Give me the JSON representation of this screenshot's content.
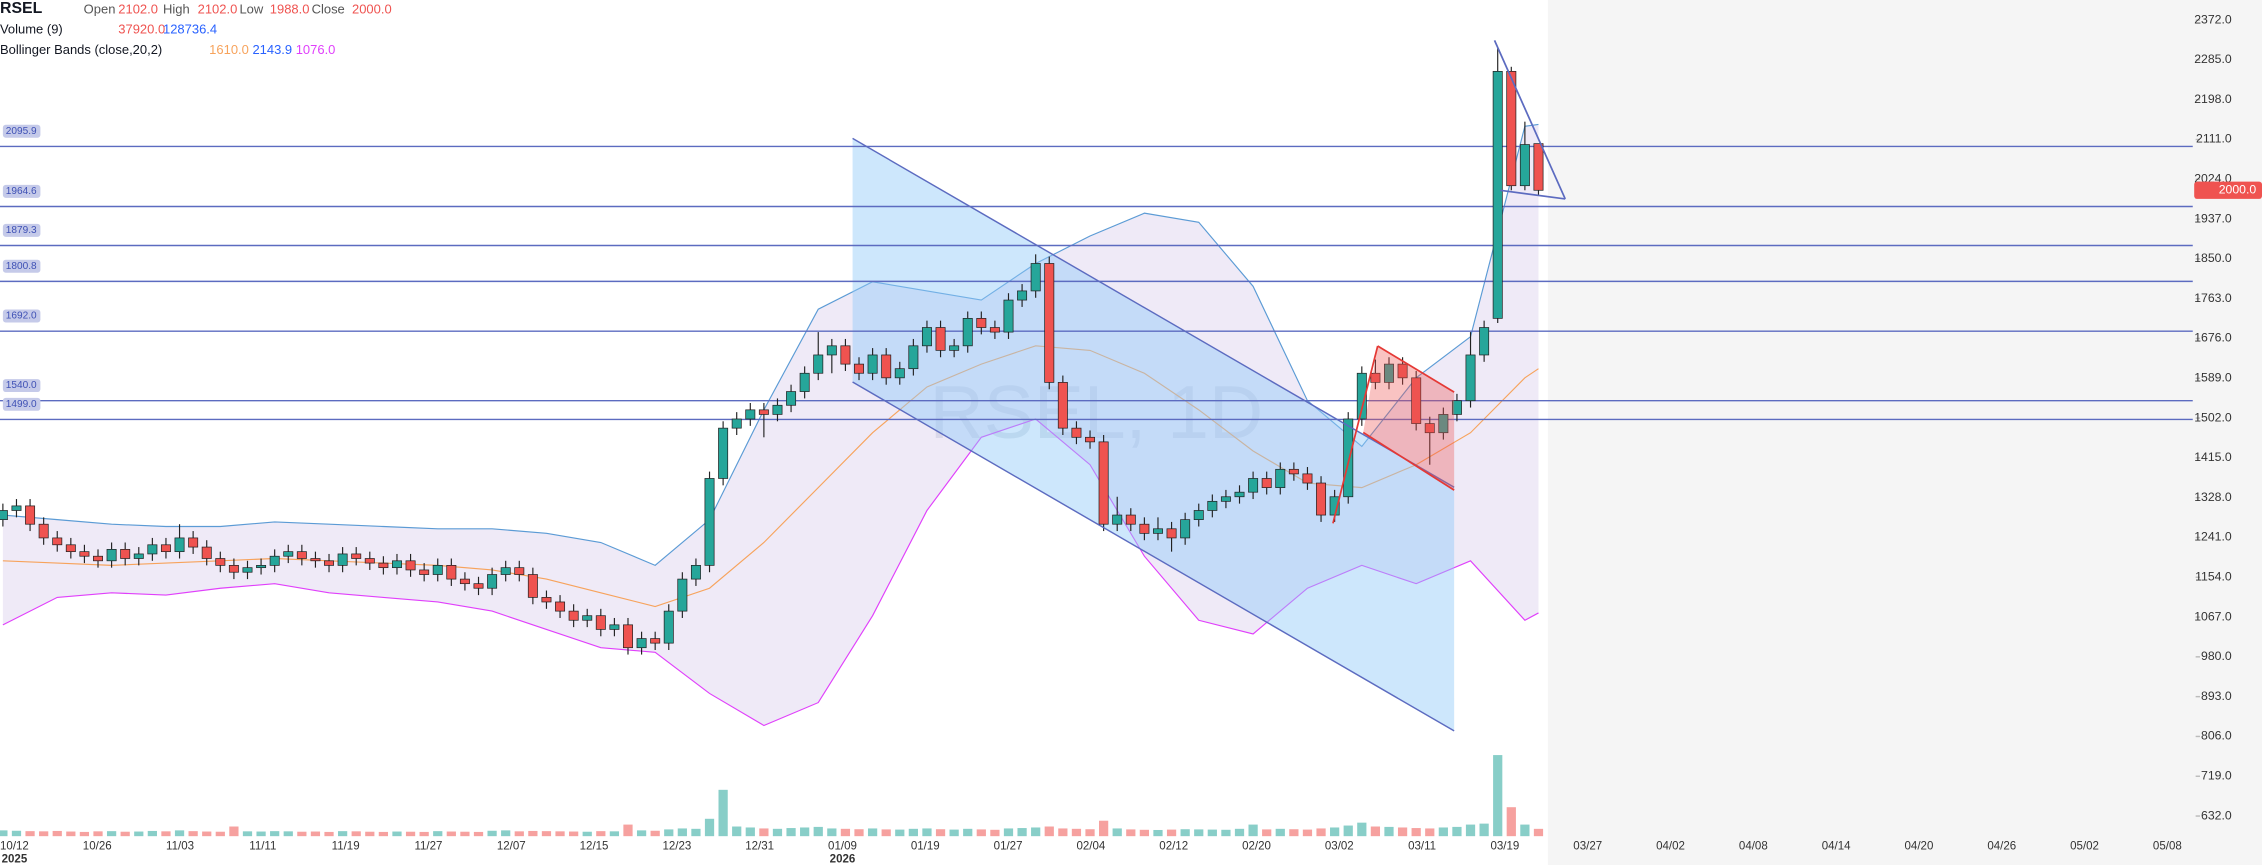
{
  "header": {
    "symbol": "RSEL",
    "open_label": "Open",
    "open": "2102.0",
    "high_label": "High",
    "high": "2102.0",
    "low_label": "Low",
    "low": "1988.0",
    "close_label": "Close",
    "close": "2000.0",
    "volume_label": "Volume (9)",
    "volume": "37920.0",
    "volume_ma": "128736.4",
    "bb_label": "Bollinger Bands (close,20,2)",
    "bb_basis": "1610.0",
    "bb_upper": "2143.9",
    "bb_lower": "1076.0"
  },
  "chart_data": {
    "type": "candlestick",
    "watermark": "RSEL, 1D",
    "up_color": "#26a69a",
    "down_color": "#ef5350",
    "ylim": [
      588,
      2416
    ],
    "yticks": [
      {
        "value": 2372,
        "label": "2372.0"
      },
      {
        "value": 2285,
        "label": "2285.0"
      },
      {
        "value": 2198,
        "label": "2198.0"
      },
      {
        "value": 2111,
        "label": "2111.0"
      },
      {
        "value": 2024,
        "label": "2024.0"
      },
      {
        "value": 1937,
        "label": "1937.0"
      },
      {
        "value": 1850,
        "label": "1850.0"
      },
      {
        "value": 1763,
        "label": "1763.0"
      },
      {
        "value": 1676,
        "label": "1676.0"
      },
      {
        "value": 1589,
        "label": "1589.0"
      },
      {
        "value": 1502,
        "label": "1502.0"
      },
      {
        "value": 1415,
        "label": "1415.0"
      },
      {
        "value": 1328,
        "label": "1328.0"
      },
      {
        "value": 1241,
        "label": "1241.0"
      },
      {
        "value": 1154,
        "label": "1154.0"
      },
      {
        "value": 1067,
        "label": "1067.0"
      },
      {
        "value": 980,
        "label": "980.0"
      },
      {
        "value": 893,
        "label": "893.0"
      },
      {
        "value": 806,
        "label": "806.0"
      },
      {
        "value": 719,
        "label": "719.0"
      },
      {
        "value": 632,
        "label": "632.0"
      }
    ],
    "levels": [
      {
        "value": 2095.9,
        "label": "2095.9"
      },
      {
        "value": 1964.6,
        "label": "1964.6"
      },
      {
        "value": 1879.3,
        "label": "1879.3"
      },
      {
        "value": 1800.8,
        "label": "1800.8"
      },
      {
        "value": 1692,
        "label": "1692.0"
      },
      {
        "value": 1540,
        "label": "1540.0"
      },
      {
        "value": 1499,
        "label": "1499.0"
      }
    ],
    "last_price": {
      "value": 2000,
      "label": "2000.0"
    },
    "time_axis": [
      {
        "label": "10/12",
        "year": "2025"
      },
      {
        "label": "10/26"
      },
      {
        "label": "11/03"
      },
      {
        "label": "11/11"
      },
      {
        "label": "11/19"
      },
      {
        "label": "11/27"
      },
      {
        "label": "12/07"
      },
      {
        "label": "12/15"
      },
      {
        "label": "12/23"
      },
      {
        "label": "12/31"
      },
      {
        "label": "01/09",
        "year": "2026"
      },
      {
        "label": "01/19"
      },
      {
        "label": "01/27"
      },
      {
        "label": "02/04"
      },
      {
        "label": "02/12"
      },
      {
        "label": "02/20"
      },
      {
        "label": "03/02"
      },
      {
        "label": "03/11"
      },
      {
        "label": "03/19"
      },
      {
        "label": "03/27"
      },
      {
        "label": "04/02"
      },
      {
        "label": "04/08"
      },
      {
        "label": "04/14"
      },
      {
        "label": "04/20"
      },
      {
        "label": "04/26"
      },
      {
        "label": "05/02"
      },
      {
        "label": "05/08"
      }
    ],
    "candles": [
      [
        1280,
        1315,
        1265,
        1300
      ],
      [
        1300,
        1325,
        1285,
        1310
      ],
      [
        1310,
        1325,
        1255,
        1270
      ],
      [
        1270,
        1285,
        1225,
        1240
      ],
      [
        1240,
        1255,
        1210,
        1225
      ],
      [
        1225,
        1240,
        1195,
        1210
      ],
      [
        1210,
        1225,
        1185,
        1200
      ],
      [
        1200,
        1215,
        1175,
        1190
      ],
      [
        1190,
        1230,
        1175,
        1215
      ],
      [
        1215,
        1230,
        1180,
        1195
      ],
      [
        1195,
        1220,
        1180,
        1205
      ],
      [
        1205,
        1240,
        1190,
        1225
      ],
      [
        1225,
        1240,
        1195,
        1210
      ],
      [
        1210,
        1270,
        1195,
        1240
      ],
      [
        1240,
        1255,
        1205,
        1220
      ],
      [
        1220,
        1235,
        1180,
        1195
      ],
      [
        1195,
        1210,
        1165,
        1180
      ],
      [
        1180,
        1195,
        1150,
        1165
      ],
      [
        1165,
        1190,
        1150,
        1175
      ],
      [
        1175,
        1195,
        1160,
        1180
      ],
      [
        1180,
        1215,
        1165,
        1200
      ],
      [
        1200,
        1225,
        1185,
        1210
      ],
      [
        1210,
        1225,
        1180,
        1195
      ],
      [
        1195,
        1210,
        1175,
        1190
      ],
      [
        1190,
        1205,
        1165,
        1180
      ],
      [
        1180,
        1220,
        1165,
        1205
      ],
      [
        1205,
        1220,
        1180,
        1195
      ],
      [
        1195,
        1210,
        1170,
        1185
      ],
      [
        1185,
        1200,
        1160,
        1175
      ],
      [
        1175,
        1205,
        1160,
        1190
      ],
      [
        1190,
        1205,
        1155,
        1170
      ],
      [
        1170,
        1185,
        1145,
        1160
      ],
      [
        1160,
        1195,
        1145,
        1180
      ],
      [
        1180,
        1195,
        1135,
        1150
      ],
      [
        1150,
        1165,
        1125,
        1140
      ],
      [
        1140,
        1155,
        1115,
        1130
      ],
      [
        1130,
        1175,
        1115,
        1160
      ],
      [
        1160,
        1190,
        1145,
        1175
      ],
      [
        1175,
        1190,
        1145,
        1160
      ],
      [
        1160,
        1175,
        1095,
        1110
      ],
      [
        1110,
        1125,
        1085,
        1100
      ],
      [
        1100,
        1115,
        1065,
        1080
      ],
      [
        1080,
        1095,
        1045,
        1060
      ],
      [
        1060,
        1085,
        1045,
        1070
      ],
      [
        1070,
        1085,
        1025,
        1040
      ],
      [
        1040,
        1065,
        1025,
        1050
      ],
      [
        1050,
        1065,
        985,
        1000
      ],
      [
        1000,
        1035,
        985,
        1020
      ],
      [
        1020,
        1035,
        995,
        1010
      ],
      [
        1010,
        1095,
        995,
        1080
      ],
      [
        1080,
        1165,
        1065,
        1150
      ],
      [
        1150,
        1195,
        1135,
        1180
      ],
      [
        1180,
        1385,
        1165,
        1370
      ],
      [
        1370,
        1495,
        1355,
        1480
      ],
      [
        1480,
        1515,
        1465,
        1500
      ],
      [
        1500,
        1535,
        1485,
        1520
      ],
      [
        1520,
        1535,
        1460,
        1510
      ],
      [
        1510,
        1545,
        1495,
        1530
      ],
      [
        1530,
        1575,
        1515,
        1560
      ],
      [
        1560,
        1615,
        1545,
        1600
      ],
      [
        1600,
        1690,
        1585,
        1640
      ],
      [
        1640,
        1675,
        1600,
        1660
      ],
      [
        1660,
        1675,
        1605,
        1620
      ],
      [
        1620,
        1635,
        1585,
        1600
      ],
      [
        1600,
        1655,
        1585,
        1640
      ],
      [
        1640,
        1655,
        1575,
        1590
      ],
      [
        1590,
        1625,
        1575,
        1610
      ],
      [
        1610,
        1675,
        1595,
        1660
      ],
      [
        1660,
        1715,
        1645,
        1700
      ],
      [
        1700,
        1715,
        1635,
        1650
      ],
      [
        1650,
        1675,
        1635,
        1660
      ],
      [
        1660,
        1735,
        1645,
        1720
      ],
      [
        1720,
        1735,
        1685,
        1700
      ],
      [
        1700,
        1715,
        1675,
        1690
      ],
      [
        1690,
        1775,
        1675,
        1760
      ],
      [
        1760,
        1795,
        1745,
        1780
      ],
      [
        1780,
        1860,
        1765,
        1840
      ],
      [
        1840,
        1855,
        1565,
        1580
      ],
      [
        1580,
        1595,
        1465,
        1480
      ],
      [
        1480,
        1495,
        1445,
        1460
      ],
      [
        1460,
        1475,
        1435,
        1450
      ],
      [
        1450,
        1465,
        1255,
        1270
      ],
      [
        1270,
        1330,
        1255,
        1290
      ],
      [
        1290,
        1305,
        1255,
        1270
      ],
      [
        1270,
        1285,
        1235,
        1250
      ],
      [
        1250,
        1285,
        1235,
        1260
      ],
      [
        1260,
        1275,
        1210,
        1240
      ],
      [
        1240,
        1295,
        1225,
        1280
      ],
      [
        1280,
        1315,
        1265,
        1300
      ],
      [
        1300,
        1335,
        1285,
        1320
      ],
      [
        1320,
        1345,
        1305,
        1330
      ],
      [
        1330,
        1355,
        1315,
        1340
      ],
      [
        1340,
        1385,
        1325,
        1370
      ],
      [
        1370,
        1385,
        1335,
        1350
      ],
      [
        1350,
        1405,
        1335,
        1390
      ],
      [
        1390,
        1405,
        1365,
        1380
      ],
      [
        1380,
        1395,
        1345,
        1360
      ],
      [
        1360,
        1375,
        1275,
        1290
      ],
      [
        1290,
        1345,
        1275,
        1330
      ],
      [
        1330,
        1515,
        1315,
        1500
      ],
      [
        1500,
        1615,
        1485,
        1600
      ],
      [
        1600,
        1630,
        1565,
        1580
      ],
      [
        1580,
        1635,
        1565,
        1620
      ],
      [
        1620,
        1635,
        1575,
        1590
      ],
      [
        1590,
        1605,
        1475,
        1490
      ],
      [
        1490,
        1505,
        1400,
        1470
      ],
      [
        1470,
        1525,
        1455,
        1510
      ],
      [
        1510,
        1555,
        1495,
        1540
      ],
      [
        1540,
        1690,
        1525,
        1640
      ],
      [
        1640,
        1715,
        1625,
        1700
      ],
      [
        1720,
        2310,
        1710,
        2260
      ],
      [
        2260,
        2270,
        2000,
        2010
      ],
      [
        2010,
        2150,
        2000,
        2100
      ],
      [
        2102,
        2102,
        1988,
        2000
      ]
    ],
    "volumes": [
      30000,
      28000,
      26000,
      25000,
      27000,
      24000,
      22000,
      25000,
      26000,
      23000,
      24000,
      27000,
      25000,
      30000,
      26000,
      24000,
      23000,
      50000,
      25000,
      24000,
      26000,
      25000,
      23000,
      24000,
      22000,
      26000,
      25000,
      23000,
      22000,
      24000,
      23000,
      22000,
      26000,
      24000,
      23000,
      22000,
      28000,
      30000,
      25000,
      27000,
      26000,
      25000,
      24000,
      23000,
      26000,
      25000,
      60000,
      30000,
      28000,
      35000,
      40000,
      38000,
      90000,
      240000,
      50000,
      45000,
      40000,
      38000,
      42000,
      45000,
      48000,
      40000,
      38000,
      36000,
      40000,
      35000,
      34000,
      38000,
      40000,
      36000,
      34000,
      38000,
      35000,
      33000,
      40000,
      42000,
      45000,
      50000,
      40000,
      38000,
      36000,
      80000,
      40000,
      35000,
      33000,
      32000,
      34000,
      36000,
      35000,
      34000,
      33000,
      38000,
      60000,
      35000,
      38000,
      36000,
      34000,
      40000,
      45000,
      55000,
      70000,
      50000,
      48000,
      45000,
      42000,
      40000,
      45000,
      48000,
      60000,
      65000,
      420000,
      150000,
      60000,
      37920
    ],
    "volume_ylim": [
      0,
      560000
    ],
    "bands": {
      "x": [
        0,
        4,
        8,
        12,
        16,
        20,
        24,
        28,
        32,
        36,
        40,
        44,
        48,
        52,
        56,
        60,
        64,
        68,
        72,
        76,
        80,
        84,
        88,
        92,
        96,
        100,
        104,
        108,
        112,
        113
      ],
      "series": [
        {
          "color": "#f7a35c",
          "values": [
            1190,
            1185,
            1180,
            1185,
            1190,
            1195,
            1190,
            1185,
            1180,
            1170,
            1150,
            1120,
            1090,
            1130,
            1230,
            1350,
            1470,
            1570,
            1620,
            1660,
            1650,
            1600,
            1520,
            1430,
            1360,
            1350,
            1400,
            1470,
            1590,
            1610
          ]
        },
        {
          "color": "#5b9bd5",
          "values": [
            1290,
            1280,
            1270,
            1265,
            1265,
            1275,
            1270,
            1265,
            1260,
            1260,
            1250,
            1230,
            1180,
            1280,
            1520,
            1740,
            1800,
            1780,
            1760,
            1840,
            1900,
            1950,
            1930,
            1790,
            1540,
            1440,
            1590,
            1680,
            2140,
            2144
          ]
        },
        {
          "color": "#e040fb",
          "values": [
            1050,
            1110,
            1120,
            1115,
            1130,
            1140,
            1120,
            1110,
            1100,
            1080,
            1040,
            1000,
            990,
            900,
            830,
            880,
            1070,
            1300,
            1460,
            1500,
            1400,
            1200,
            1060,
            1030,
            1130,
            1180,
            1140,
            1190,
            1060,
            1076
          ]
        }
      ]
    }
  }
}
